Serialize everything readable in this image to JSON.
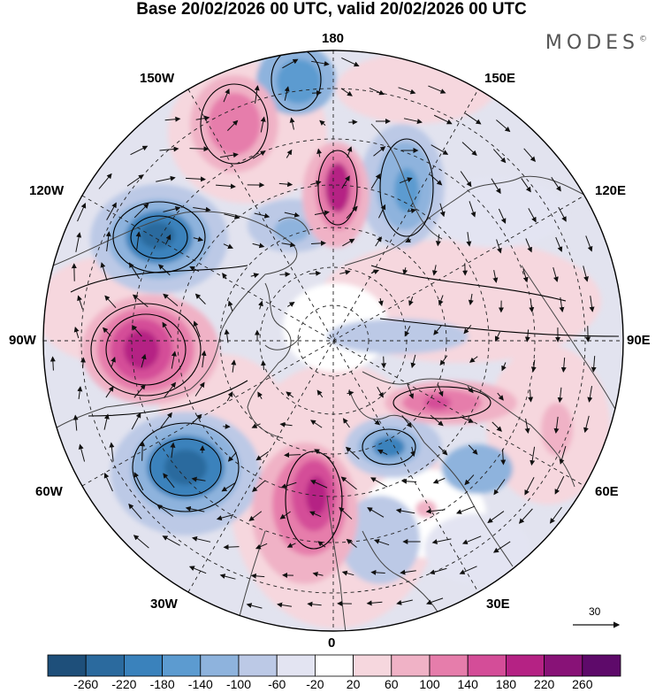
{
  "header": {
    "title": "Base 20/02/2026 00 UTC, valid 20/02/2026 00 UTC",
    "brand": "MODES",
    "brand_mark": "©"
  },
  "map": {
    "projection": "north-polar-stereographic",
    "longitude_labels": {
      "top": "180",
      "bottom": "0",
      "left": "90W",
      "right": "90E",
      "upper_left": "150W",
      "upper_left_2": "120W",
      "lower_left": "60W",
      "lower_left_2": "30W",
      "upper_right": "150E",
      "upper_right_2": "120E",
      "lower_right": "60E",
      "lower_right_2": "30E"
    },
    "wind_reference_vector": "30",
    "colors": {
      "land_outline": "#444444",
      "contour_line": "#000000",
      "grid_line": "#222222"
    }
  },
  "colorbar": {
    "labels": [
      "-260",
      "-220",
      "-180",
      "-140",
      "-100",
      "-60",
      "-20",
      "20",
      "60",
      "100",
      "140",
      "180",
      "220",
      "260"
    ],
    "colors": [
      "#1e4f7a",
      "#2b6a9e",
      "#3a82bc",
      "#5c9bd0",
      "#8eb3dd",
      "#bcc9e6",
      "#e3e4f2",
      "#ffffff",
      "#f6d7de",
      "#f0b2c6",
      "#e67dab",
      "#d44d98",
      "#b52284",
      "#881277",
      "#5e0a6a"
    ]
  }
}
